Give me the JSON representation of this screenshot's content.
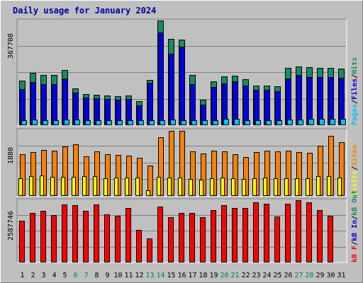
{
  "chart_data": {
    "type": "bar",
    "title": "Daily usage for January 2024",
    "categories": [
      "1",
      "2",
      "3",
      "4",
      "5",
      "6",
      "7",
      "8",
      "9",
      "10",
      "11",
      "12",
      "13",
      "14",
      "15",
      "16",
      "17",
      "18",
      "19",
      "20",
      "21",
      "22",
      "23",
      "24",
      "25",
      "26",
      "27",
      "28",
      "29",
      "30",
      "31"
    ],
    "weekend_days": [
      "6",
      "7",
      "13",
      "14",
      "20",
      "21",
      "27",
      "28"
    ],
    "panels": [
      {
        "id": "hits",
        "ymax_label": "367708",
        "ylim": [
          0,
          367708
        ],
        "legend": [
          "Pages",
          "/",
          "Files",
          "/",
          "Hits"
        ],
        "series": [
          {
            "name": "Hits",
            "color": "#1b8a62",
            "values": [
              157000,
              184000,
              176000,
              176000,
              193000,
              130000,
              110000,
              108000,
              104000,
              102000,
              105000,
              84000,
              160000,
              367708,
              304000,
              301000,
              177000,
              89000,
              155000,
              171000,
              175000,
              161000,
              139000,
              138000,
              136000,
              201000,
              205000,
              204000,
              202000,
              202000,
              200000
            ]
          },
          {
            "name": "Files",
            "color": "#0000e6",
            "values": [
              126000,
              152000,
              145000,
              145000,
              163000,
              114000,
              97000,
              94000,
              93000,
              89000,
              92000,
              69000,
              148000,
              325000,
              251000,
              275000,
              145000,
              73000,
              135000,
              147000,
              155000,
              140000,
              123000,
              123000,
              120000,
              165000,
              176000,
              169000,
              169000,
              168000,
              167000
            ]
          },
          {
            "name": "Pages",
            "color": "#00c0ff",
            "values": [
              14000,
              19000,
              17000,
              17000,
              20000,
              19000,
              16000,
              16000,
              15000,
              15000,
              16000,
              12000,
              7000,
              9000,
              21000,
              17000,
              17000,
              15000,
              17000,
              22000,
              22000,
              18000,
              17000,
              17000,
              16000,
              21000,
              21000,
              22000,
              23000,
              22000,
              23000
            ]
          }
        ]
      },
      {
        "id": "sites",
        "ymax_label": "1880",
        "ylim": [
          0,
          1880
        ],
        "legend": [
          "Visits",
          "/",
          "Sites"
        ],
        "series": [
          {
            "name": "Sites",
            "color": "#ff8000",
            "values": [
              1200,
              1250,
              1320,
              1290,
              1410,
              1470,
              1140,
              1270,
              1190,
              1170,
              1150,
              1100,
              870,
              1680,
              1850,
              1850,
              1280,
              1220,
              1290,
              1280,
              1200,
              1110,
              1260,
              1290,
              1280,
              1290,
              1250,
              1230,
              1430,
              1710,
              1540
            ]
          },
          {
            "name": "Visits",
            "color": "#ffff00",
            "values": [
              510,
              560,
              580,
              540,
              550,
              540,
              560,
              560,
              510,
              520,
              520,
              520,
              170,
              540,
              520,
              520,
              490,
              470,
              500,
              530,
              500,
              490,
              500,
              520,
              510,
              500,
              500,
              500,
              560,
              570,
              520
            ]
          }
        ]
      },
      {
        "id": "kbytes",
        "ymax_label": "2587746",
        "ylim": [
          0,
          2587746
        ],
        "legend": [
          "kB F",
          "/",
          "kB In",
          "/",
          "kB Out"
        ],
        "series": [
          {
            "name": "kB F",
            "color": "#ff0000",
            "values": [
              1740000,
              2070000,
              2160000,
              1970000,
              2400000,
              2390000,
              2150000,
              2410000,
              2000000,
              1930000,
              2260000,
              1350000,
              1000000,
              2320000,
              1890000,
              2070000,
              2050000,
              1870000,
              2190000,
              2380000,
              2250000,
              2250000,
              2510000,
              2450000,
              1900000,
              2450000,
              2587746,
              2490000,
              2170000,
              1950000,
              0
            ]
          }
        ]
      }
    ],
    "legend_colors": {
      "Pages": "#00c0ff",
      "Files": "#0000e6",
      "Hits": "#1b8a62",
      "Visits": "#ffff00",
      "Sites": "#ff8000",
      "kB F": "#ff0000",
      "kB In": "#0000e6",
      "kB Out": "#1b8a62",
      "slash": "#000000"
    }
  }
}
